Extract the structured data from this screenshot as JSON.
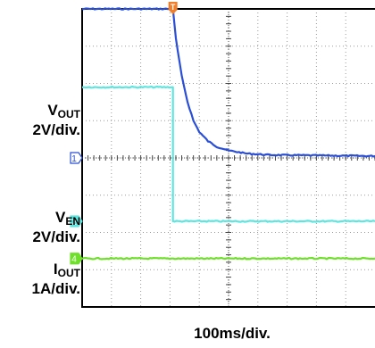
{
  "chart_data": {
    "type": "line",
    "title": "",
    "xlabel": "100ms/div.",
    "x_unit": "ms",
    "x_divisions": 10,
    "y_divisions": 8,
    "xlim": [
      0,
      1000
    ],
    "grid": true,
    "colors": {
      "ch1": "#2a4fd6",
      "ch2": "#5de6e0",
      "ch4": "#6ee02a",
      "trigger": "#f07e2a"
    },
    "trigger_marker": {
      "label": "T",
      "x": 310
    },
    "series": [
      {
        "name_main": "V",
        "name_sub": "OUT",
        "scale": "2V/div.",
        "channel": "1",
        "color": "#2a4fd6",
        "unit": "div",
        "x": [
          0,
          310,
          320,
          340,
          360,
          380,
          400,
          430,
          460,
          500,
          560,
          640,
          1000
        ],
        "y": [
          8.0,
          8.0,
          7.2,
          6.2,
          5.5,
          5.0,
          4.7,
          4.45,
          4.3,
          4.2,
          4.12,
          4.08,
          4.05
        ]
      },
      {
        "name_main": "V",
        "name_sub": "EN",
        "scale": "2V/div.",
        "channel": "2",
        "color": "#5de6e0",
        "unit": "div",
        "x": [
          0,
          310,
          310,
          1000
        ],
        "y": [
          5.9,
          5.9,
          2.3,
          2.3
        ]
      },
      {
        "name_main": "I",
        "name_sub": "OUT",
        "scale": "1A/div.",
        "channel": "4",
        "color": "#6ee02a",
        "unit": "div",
        "x": [
          0,
          1000
        ],
        "y": [
          1.3,
          1.3
        ]
      }
    ]
  }
}
